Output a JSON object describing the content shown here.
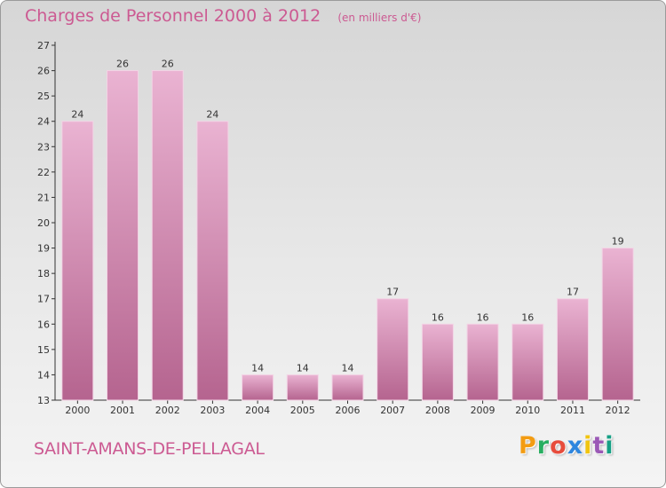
{
  "header": {
    "title": "Charges de Personnel 2000 à 2012",
    "subtitle": "(en milliers d'€)"
  },
  "footer": {
    "commune": "SAINT-AMANS-DE-PELLAGAL",
    "brand": "Proxiti",
    "brand_colors": [
      "#f39c12",
      "#27ae60",
      "#e74c3c",
      "#2e86de",
      "#f1c40f",
      "#9b59b6",
      "#16a085"
    ]
  },
  "colors": {
    "bar_light": "#eab3d2",
    "bar_dark": "#b5648f",
    "title": "#cc5a92",
    "axis": "#333333"
  },
  "chart_data": {
    "type": "bar",
    "title": "Charges de Personnel 2000 à 2012",
    "subtitle": "(en milliers d'€)",
    "xlabel": "",
    "ylabel": "",
    "categories": [
      "2000",
      "2001",
      "2002",
      "2003",
      "2004",
      "2005",
      "2006",
      "2007",
      "2008",
      "2009",
      "2010",
      "2011",
      "2012"
    ],
    "values": [
      24,
      26,
      26,
      24,
      14,
      14,
      14,
      17,
      16,
      16,
      16,
      17,
      19
    ],
    "data_labels": [
      "24",
      "26",
      "26",
      "24",
      "14",
      "14",
      "14",
      "17",
      "16",
      "16",
      "16",
      "17",
      "19"
    ],
    "ylim": [
      13,
      27
    ],
    "yticks": [
      13,
      14,
      15,
      16,
      17,
      18,
      19,
      20,
      21,
      22,
      23,
      24,
      25,
      26,
      27
    ],
    "grid": false,
    "legend": "none"
  }
}
